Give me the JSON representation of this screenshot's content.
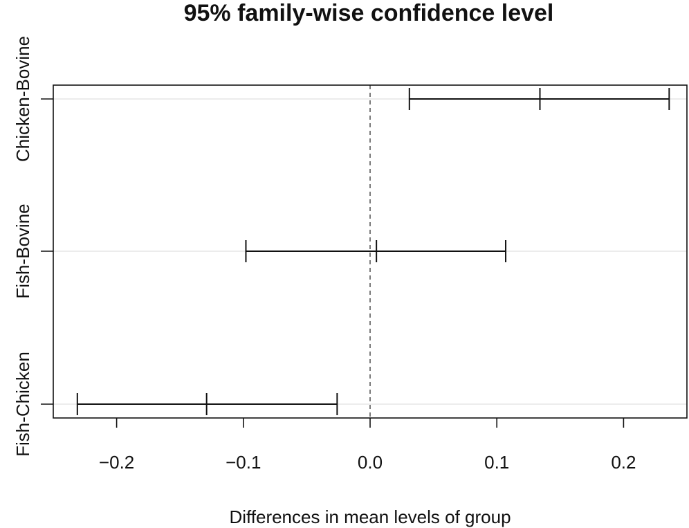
{
  "chart_data": {
    "type": "interval",
    "title": "95% family-wise confidence level",
    "xlabel": "Differences in mean levels of group",
    "ylabel": "",
    "xlim": [
      -0.25,
      0.25
    ],
    "xticks": [
      -0.2,
      -0.1,
      0.0,
      0.1,
      0.2
    ],
    "xtick_labels": [
      "−0.2",
      "−0.1",
      "0.0",
      "0.1",
      "0.2"
    ],
    "reference_line": 0,
    "grid": "horizontal",
    "categories": [
      "Chicken-Bovine",
      "Fish-Bovine",
      "Fish-Chicken"
    ],
    "series": [
      {
        "name": "",
        "intervals": [
          {
            "label": "Chicken-Bovine",
            "lwr": 0.031,
            "estimate": 0.134,
            "upr": 0.236
          },
          {
            "label": "Fish-Bovine",
            "lwr": -0.098,
            "estimate": 0.005,
            "upr": 0.107
          },
          {
            "label": "Fish-Chicken",
            "lwr": -0.231,
            "estimate": -0.129,
            "upr": -0.026
          }
        ]
      }
    ]
  }
}
